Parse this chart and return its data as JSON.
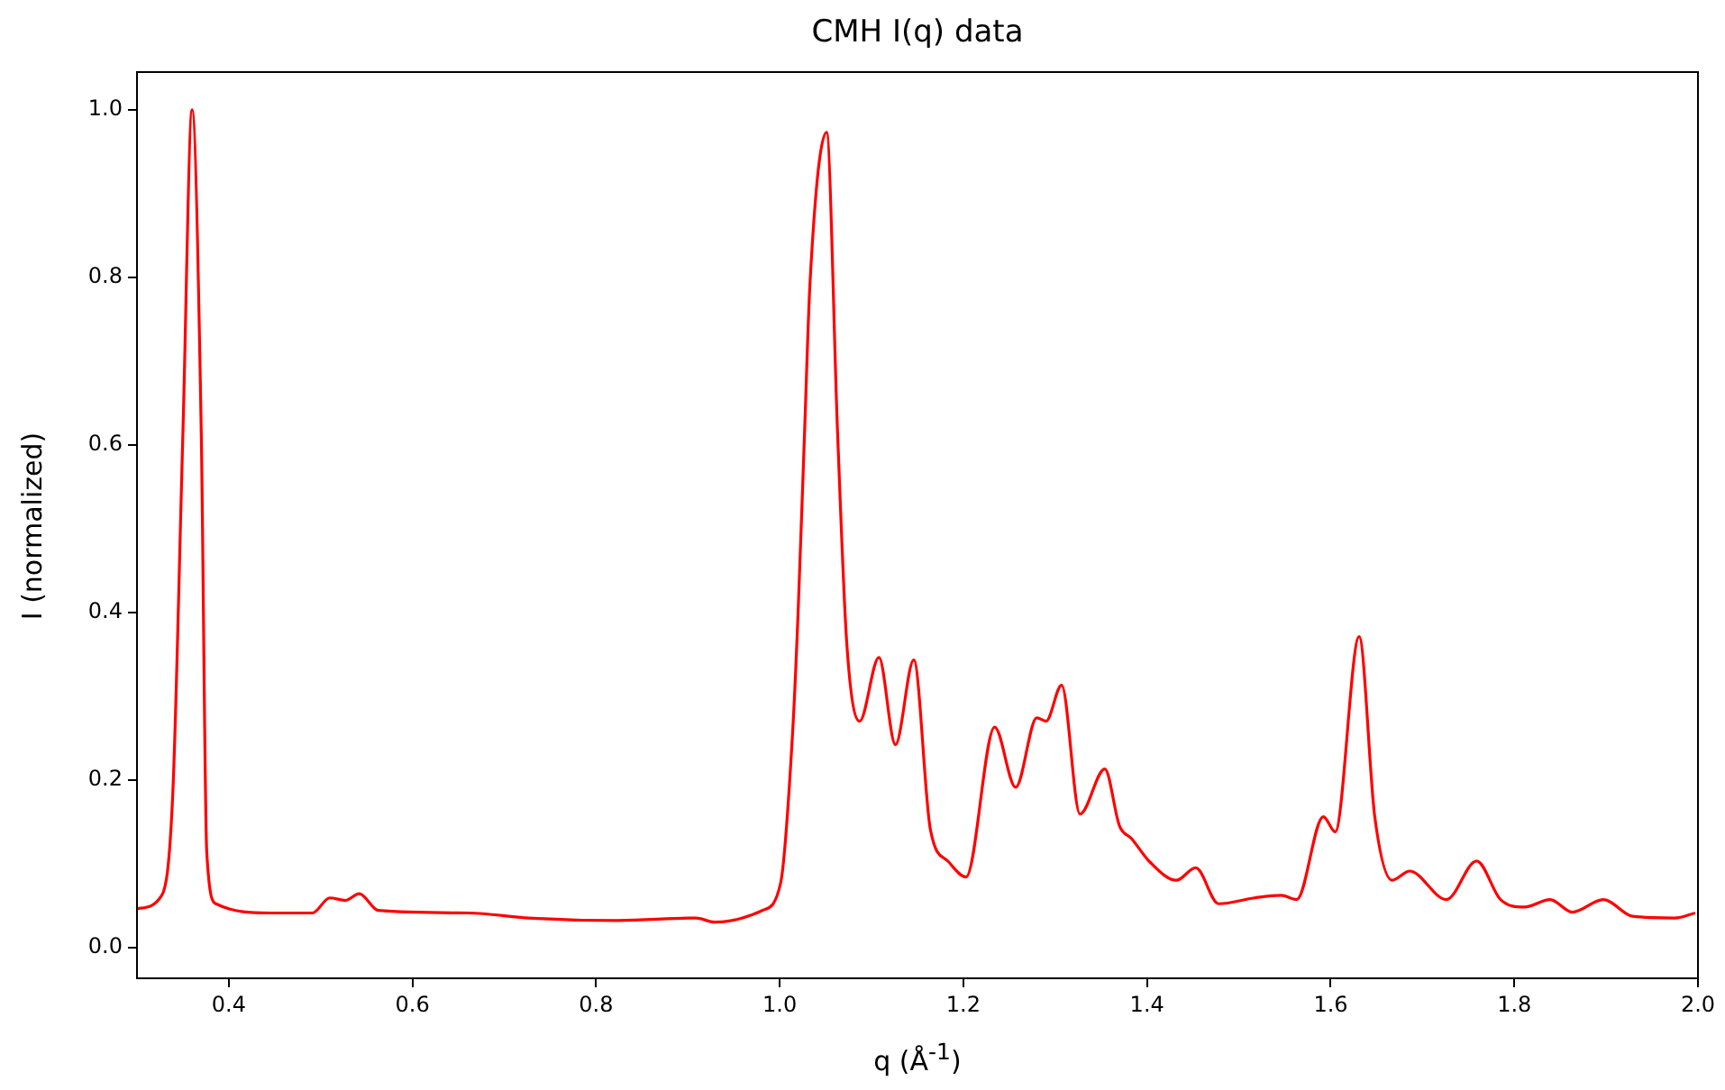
{
  "chart_data": {
    "type": "line",
    "title": "CMH I(q) data",
    "xlabel": "q (Å$^{-1}$)",
    "ylabel": "I (normalized)",
    "xlim": [
      0.3,
      2.0
    ],
    "ylim": [
      -0.037,
      1.045
    ],
    "xticks": [
      0.4,
      0.6,
      0.8,
      {
        "value": 1.0,
        "label": "1.0"
      },
      1.2,
      1.4,
      1.6,
      1.8,
      {
        "value": 2.0,
        "label": "2.0"
      }
    ],
    "yticks": [
      {
        "value": 0,
        "label": "0.0"
      },
      0.2,
      0.4,
      0.6,
      0.8,
      {
        "value": 1.0,
        "label": "1.0"
      }
    ],
    "grid": false,
    "legend": false,
    "marker": "none",
    "line_style": "solid",
    "series": [
      {
        "color": "#ff0000",
        "x": [
          0.3,
          0.327,
          0.339,
          0.35,
          0.36,
          0.37,
          0.376,
          0.386,
          0.445,
          0.491,
          0.51,
          0.527,
          0.542,
          0.563,
          0.661,
          0.726,
          0.824,
          0.909,
          0.929,
          0.981,
          1.001,
          1.014,
          1.02,
          1.027,
          1.033,
          1.051,
          1.063,
          1.073,
          1.087,
          1.108,
          1.126,
          1.146,
          1.164,
          1.184,
          1.203,
          1.234,
          1.257,
          1.28,
          1.29,
          1.307,
          1.327,
          1.354,
          1.37,
          1.383,
          1.403,
          1.432,
          1.453,
          1.478,
          1.517,
          1.546,
          1.563,
          1.592,
          1.605,
          1.631,
          1.648,
          1.667,
          1.686,
          1.726,
          1.759,
          1.785,
          1.811,
          1.839,
          1.863,
          1.897,
          1.929,
          1.975,
          1.997
        ],
        "values": [
          0.046,
          0.062,
          0.184,
          0.614,
          1.0,
          0.614,
          0.113,
          0.052,
          0.041,
          0.041,
          0.059,
          0.056,
          0.064,
          0.044,
          0.041,
          0.035,
          0.032,
          0.035,
          0.03,
          0.044,
          0.077,
          0.256,
          0.4,
          0.614,
          0.794,
          0.973,
          0.614,
          0.363,
          0.27,
          0.346,
          0.242,
          0.343,
          0.141,
          0.102,
          0.084,
          0.263,
          0.191,
          0.274,
          0.27,
          0.313,
          0.159,
          0.213,
          0.145,
          0.13,
          0.102,
          0.08,
          0.095,
          0.052,
          0.059,
          0.062,
          0.057,
          0.156,
          0.138,
          0.371,
          0.156,
          0.08,
          0.091,
          0.057,
          0.103,
          0.057,
          0.048,
          0.057,
          0.042,
          0.057,
          0.037,
          0.035,
          0.041
        ]
      }
    ]
  }
}
